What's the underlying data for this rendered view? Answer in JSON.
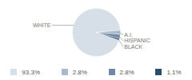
{
  "chart_data": {
    "type": "pie",
    "categories": [
      "WHITE",
      "A.I.",
      "HISPANIC",
      "BLACK"
    ],
    "values": [
      93.3,
      2.8,
      2.8,
      1.1
    ],
    "value_labels": [
      "93.3%",
      "2.8%",
      "2.8%",
      "1.1%"
    ],
    "colors": [
      "#d6dee8",
      "#a9b9cb",
      "#7189a6",
      "#2d4b6f"
    ]
  }
}
